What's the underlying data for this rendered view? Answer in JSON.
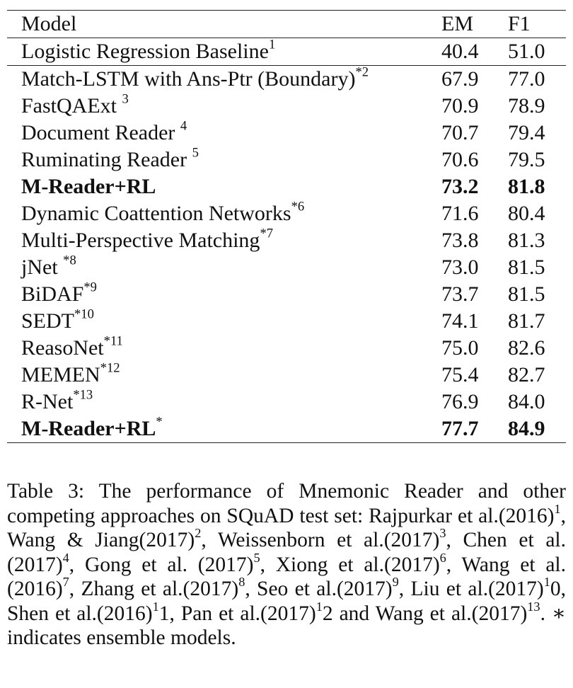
{
  "table": {
    "headers": {
      "model": "Model",
      "em": "EM",
      "f1": "F1"
    },
    "rows": [
      {
        "model": "Logistic Regression Baseline",
        "sup": "1",
        "em": "40.4",
        "f1": "51.0"
      },
      {
        "model": "Match-LSTM with Ans-Ptr (Boundary)",
        "sup": "*2",
        "em": "67.9",
        "f1": "77.0"
      },
      {
        "model": "FastQAExt ",
        "sup": "3",
        "em": "70.9",
        "f1": "78.9"
      },
      {
        "model": "Document Reader ",
        "sup": "4",
        "em": "70.7",
        "f1": "79.4"
      },
      {
        "model": "Ruminating Reader ",
        "sup": "5",
        "em": "70.6",
        "f1": "79.5"
      },
      {
        "model": "M-Reader+RL",
        "sup": "",
        "em": "73.2",
        "f1": "81.8"
      },
      {
        "model": "Dynamic Coattention Networks",
        "sup": "*6",
        "em": "71.6",
        "f1": "80.4"
      },
      {
        "model": "Multi-Perspective Matching",
        "sup": "*7",
        "em": "73.8",
        "f1": "81.3"
      },
      {
        "model": "jNet ",
        "sup": "*8",
        "em": "73.0",
        "f1": "81.5"
      },
      {
        "model": "BiDAF",
        "sup": "*9",
        "em": "73.7",
        "f1": "81.5"
      },
      {
        "model": "SEDT",
        "sup": "*10",
        "em": "74.1",
        "f1": "81.7"
      },
      {
        "model": "ReasoNet",
        "sup": "*11",
        "em": "75.0",
        "f1": "82.6"
      },
      {
        "model": "MEMEN",
        "sup": "*12",
        "em": "75.4",
        "f1": "82.7"
      },
      {
        "model": "R-Net",
        "sup": "*13",
        "em": "76.9",
        "f1": "84.0"
      },
      {
        "model": "M-Reader+RL",
        "sup": "*",
        "em": "77.7",
        "f1": "84.9"
      }
    ]
  },
  "caption": {
    "p1": "Table 3: The performance of Mnemonic Reader and other competing approaches on SQuAD test set: Rajpurkar et al.(2016)",
    "s1": "1",
    "p2": ", Wang & Jiang(2017)",
    "s2": "2",
    "p3": ", Weissenborn et al.(2017)",
    "s3": "3",
    "p4": ", Chen et al.(2017)",
    "s4": "4",
    "p5": ", Gong et al. (2017)",
    "s5": "5",
    "p6": ", Xiong et al.(2017)",
    "s6": "6",
    "p7": ", Wang et al.(2016)",
    "s7": "7",
    "p8": ", Zhang et al.(2017)",
    "s8": "8",
    "p9": ", Seo et al.(2017)",
    "s9": "9",
    "p10": ", Liu et al.(2017)",
    "s10a": "1",
    "t10": "0, Shen et al.(2016)",
    "s11a": "1",
    "t11": "1, Pan et al.(2017)",
    "s12a": "1",
    "t12": "2 and Wang et al.(2017)",
    "s13": "13",
    "p14": ". ∗ indicates ensemble models."
  }
}
